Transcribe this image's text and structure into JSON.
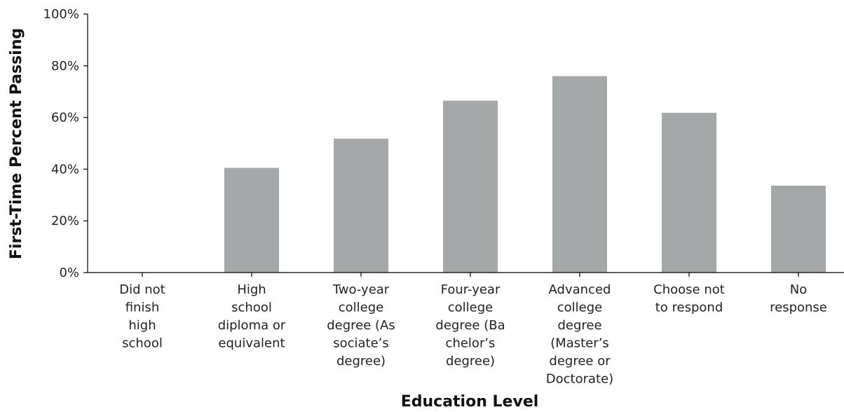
{
  "chart_data": {
    "type": "bar",
    "title": "",
    "xlabel": "Education Level",
    "ylabel": "First-Time Percent Passing",
    "categories": [
      [
        "Did not",
        "finish",
        "high",
        "school"
      ],
      [
        "High",
        "school",
        "diploma or",
        "equivalent"
      ],
      [
        "Two-year",
        "college",
        "degree (As",
        "sociate’s",
        "degree)"
      ],
      [
        "Four-year",
        "college",
        "degree (Ba",
        "chelor’s",
        "degree)"
      ],
      [
        "Advanced",
        "college",
        "degree",
        "(Master’s",
        "degree or",
        "Doctorate)"
      ],
      [
        "Choose not",
        "to respond"
      ],
      [
        "No",
        "response"
      ]
    ],
    "values": [
      0,
      40.5,
      51.8,
      66.5,
      76,
      61.8,
      33.6
    ],
    "ylim": [
      0,
      100
    ],
    "yticks": [
      0,
      20,
      40,
      60,
      80,
      100
    ],
    "ytick_labels": [
      "0%",
      "20%",
      "40%",
      "60%",
      "80%",
      "100%"
    ],
    "bar_color": "#a5a8a8",
    "grid": false,
    "legend": "none"
  }
}
